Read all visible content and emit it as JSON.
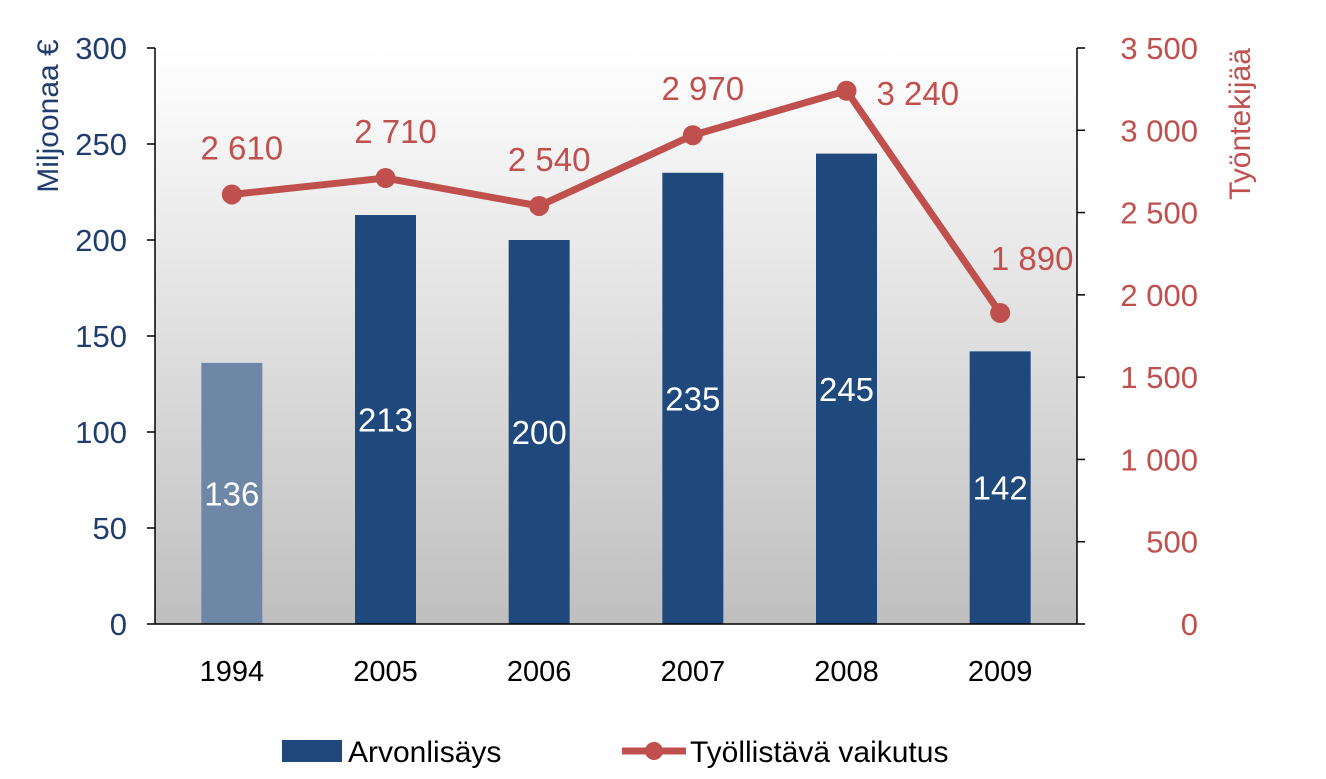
{
  "chart_data": {
    "type": "bar",
    "categories": [
      "1994",
      "2005",
      "2006",
      "2007",
      "2008",
      "2009"
    ],
    "series": [
      {
        "name": "Arvonlisäys",
        "type": "bar",
        "axis": "left",
        "values": [
          136,
          213,
          200,
          235,
          245,
          142
        ],
        "labels": [
          "136",
          "213",
          "200",
          "235",
          "245",
          "142"
        ],
        "color": "#1f497d",
        "highlight_color": "#6f87a6"
      },
      {
        "name": "Työllistävä vaikutus",
        "type": "line",
        "axis": "right",
        "values": [
          2610,
          2710,
          2540,
          2970,
          3240,
          1890
        ],
        "labels": [
          "2 610",
          "2 710",
          "2 540",
          "2 970",
          "3 240",
          "1 890"
        ],
        "color": "#c0504d"
      }
    ],
    "ylabel": "Miljoonaa €",
    "y2label": "Työntekijää",
    "ylim": [
      0,
      300
    ],
    "y2lim": [
      0,
      3500
    ],
    "yticks": [
      "0",
      "50",
      "100",
      "150",
      "200",
      "250",
      "300"
    ],
    "y2ticks": [
      "0",
      "500",
      "1 000",
      "1 500",
      "2 000",
      "2 500",
      "3 000",
      "3 500"
    ],
    "grid": false,
    "legend_position": "bottom"
  }
}
